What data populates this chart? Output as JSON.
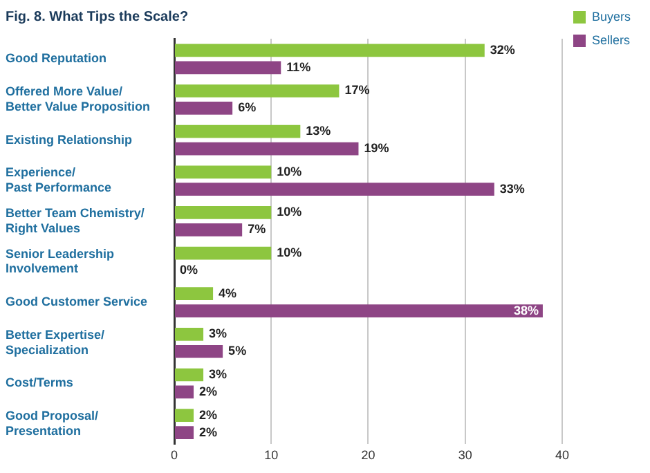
{
  "chart_data": {
    "type": "bar",
    "orientation": "horizontal",
    "title": "Fig. 8. What Tips the Scale?",
    "categories": [
      "Good Reputation",
      "Offered More Value/\nBetter Value Proposition",
      "Existing Relationship",
      "Experience/\nPast Performance",
      "Better Team Chemistry/\nRight Values",
      "Senior Leadership\nInvolvement",
      "Good Customer Service",
      "Better Expertise/\nSpecialization",
      "Cost/Terms",
      "Good Proposal/\nPresentation"
    ],
    "series": [
      {
        "name": "Buyers",
        "color": "#8dc63f",
        "values": [
          32,
          17,
          13,
          10,
          10,
          10,
          4,
          3,
          3,
          2
        ],
        "value_labels": [
          "32%",
          "17%",
          "13%",
          "10%",
          "10%",
          "10%",
          "4%",
          "3%",
          "3%",
          "2%"
        ]
      },
      {
        "name": "Sellers",
        "color": "#8e4585",
        "values": [
          11,
          6,
          19,
          33,
          7,
          0,
          38,
          5,
          2,
          2
        ],
        "value_labels": [
          "11%",
          "6%",
          "19%",
          "33%",
          "7%",
          "0%",
          "38%",
          "5%",
          "2%",
          "2%"
        ]
      }
    ],
    "xlim": [
      0,
      40
    ],
    "xticks": [
      0,
      10,
      20,
      30,
      40
    ],
    "grid": "x",
    "legend": "top right"
  }
}
